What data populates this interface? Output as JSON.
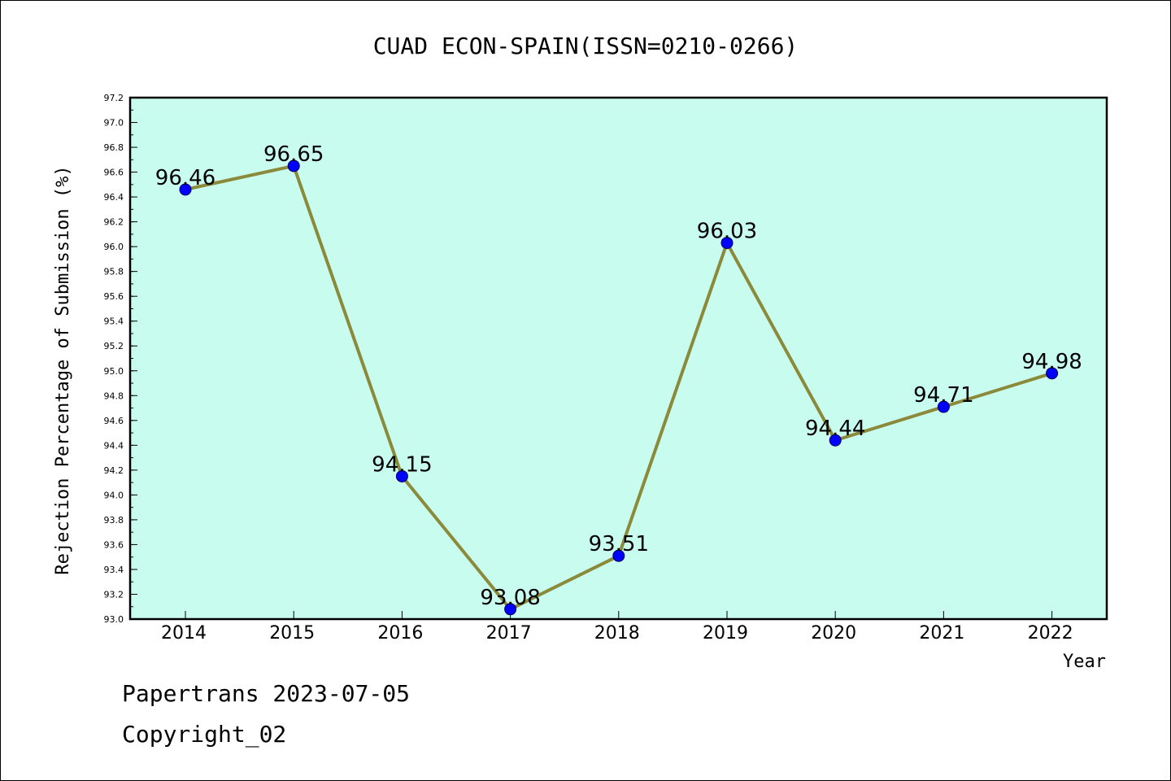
{
  "chart_data": {
    "type": "line",
    "title": "CUAD ECON-SPAIN(ISSN=0210-0266)",
    "xlabel": "Year",
    "ylabel": "Rejection Percentage of Submission (%)",
    "categories": [
      "2014",
      "2015",
      "2016",
      "2017",
      "2018",
      "2019",
      "2020",
      "2021",
      "2022"
    ],
    "values": [
      96.46,
      96.65,
      94.15,
      93.08,
      93.51,
      96.03,
      94.44,
      94.71,
      94.98
    ],
    "value_labels": [
      "96.46",
      "96.65",
      "94.15",
      "93.08",
      "93.51",
      "96.03",
      "94.44",
      "94.71",
      "94.98"
    ],
    "ylim": [
      93.0,
      97.2
    ],
    "yticks": [
      "93.0",
      "93.2",
      "93.4",
      "93.6",
      "93.8",
      "94.0",
      "94.2",
      "94.4",
      "94.6",
      "94.8",
      "95.0",
      "95.2",
      "95.4",
      "95.6",
      "95.8",
      "96.0",
      "96.2",
      "96.4",
      "96.6",
      "96.8",
      "97.0",
      "97.2"
    ],
    "grid": false,
    "colors": {
      "plot_background": "#c8fcee",
      "line": "#8b8a3a",
      "marker": "#0000ff"
    }
  },
  "footer": {
    "line1": "Papertrans 2023-07-05",
    "line2": "Copyright_02"
  }
}
